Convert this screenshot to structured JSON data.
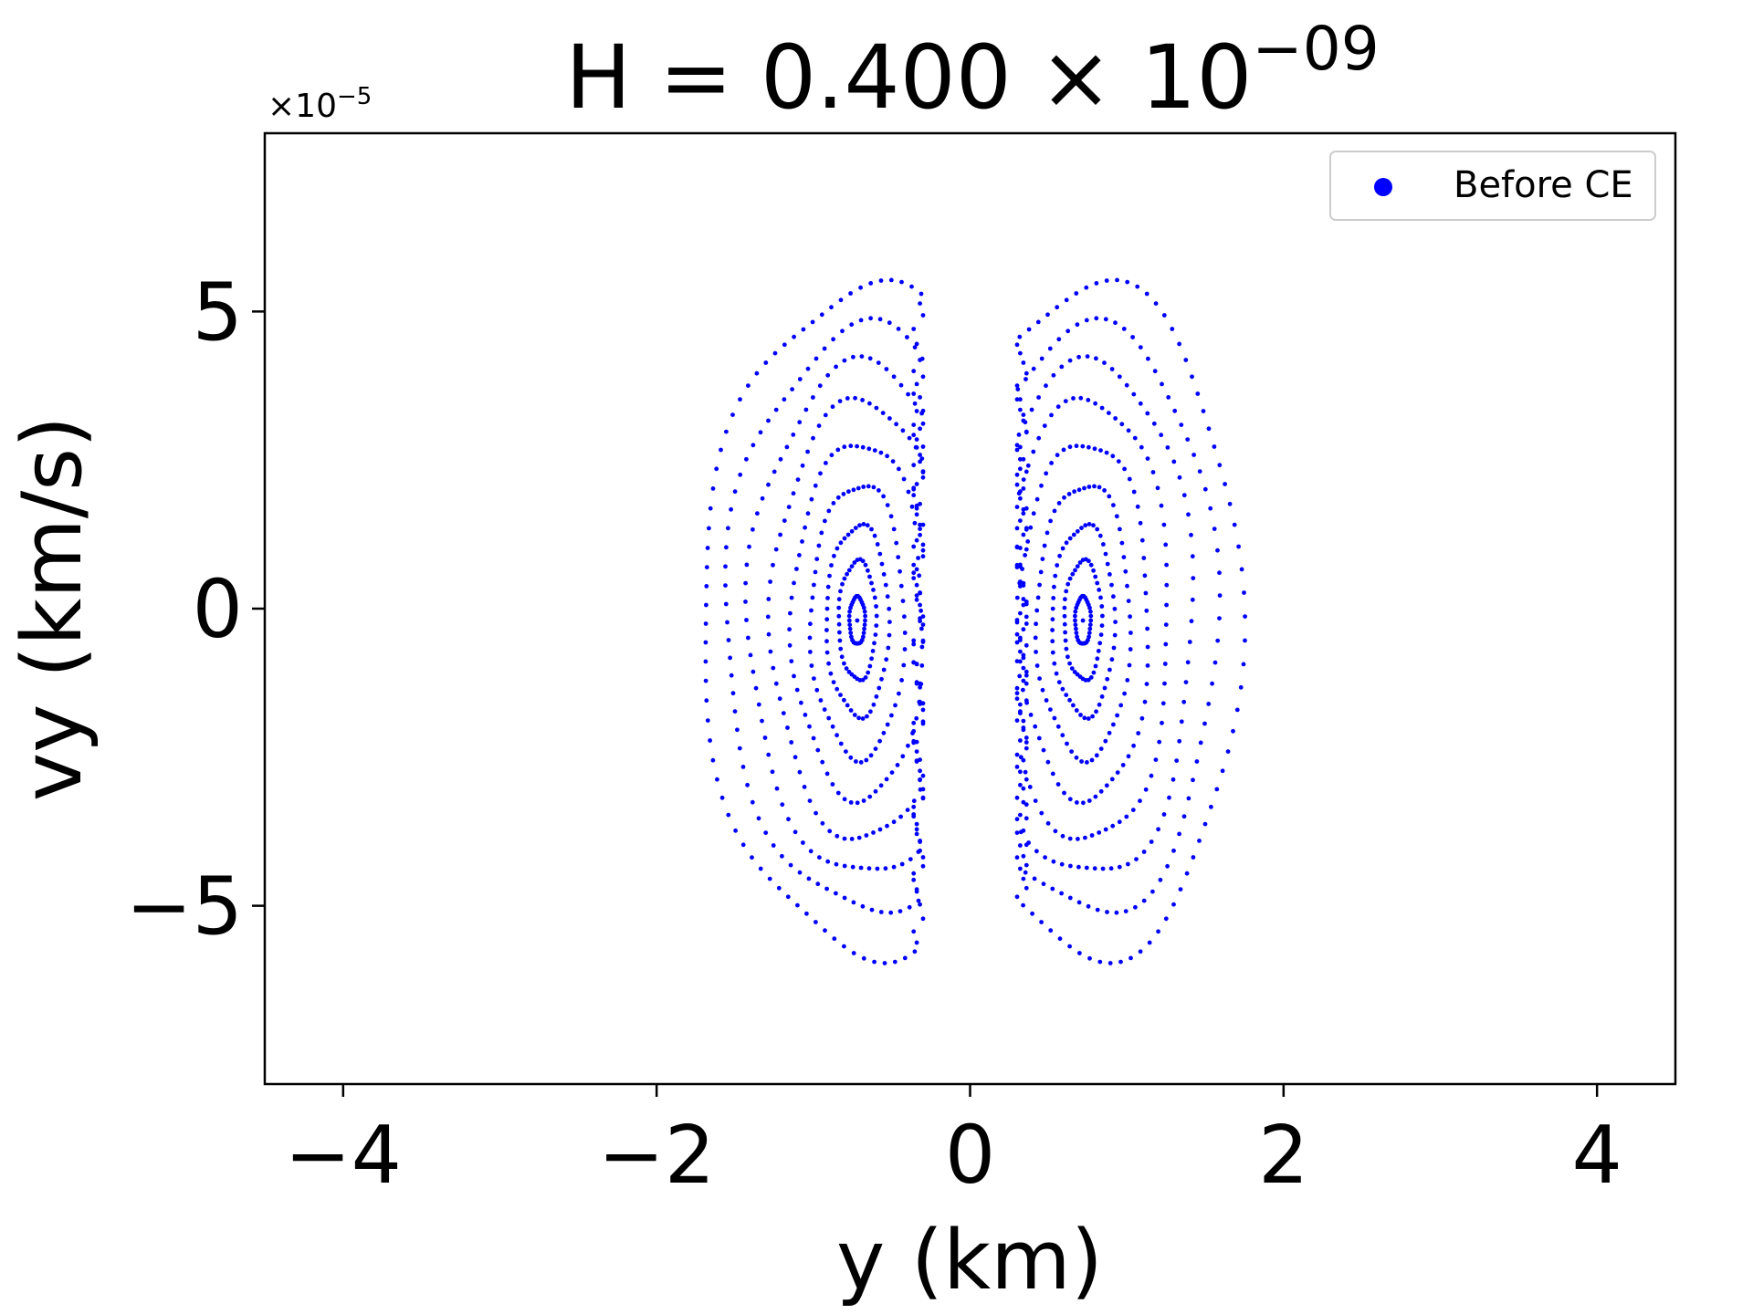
{
  "chart_data": {
    "type": "scatter",
    "title": {
      "base": "H = 0.400 × 10",
      "exponent": "−09"
    },
    "xlabel": "y (km)",
    "ylabel": "vy (km/s)",
    "y_offset_label": {
      "base": "×10",
      "exponent": "−5"
    },
    "xlim": [
      -4.5,
      4.5
    ],
    "ylim": [
      -8,
      8
    ],
    "x_ticks": [
      {
        "value": -4,
        "label": "−4"
      },
      {
        "value": -2,
        "label": "−2"
      },
      {
        "value": 0,
        "label": "0"
      },
      {
        "value": 2,
        "label": "2"
      },
      {
        "value": 4,
        "label": "4"
      }
    ],
    "y_ticks": [
      {
        "value": -5,
        "label": "−5"
      },
      {
        "value": 0,
        "label": "0"
      },
      {
        "value": 5,
        "label": "5"
      }
    ],
    "grid": false,
    "legend": {
      "position": "top-right",
      "entries": [
        "Before CE"
      ]
    },
    "series": [
      {
        "name": "Before CE",
        "color": "#0000ff",
        "marker": "dot",
        "structure": "nested closed orbits around two fixed points, truncated near y = ±0.3 km",
        "fixed_points": [
          [
            -0.72,
            -0.2
          ],
          [
            0.72,
            -0.2
          ]
        ],
        "left_lobe": {
          "center_x": -0.72,
          "center_y": -0.2,
          "inner_edge_x": -0.3,
          "outer_x_extent": [
            0.05,
            0.12,
            0.2,
            0.3,
            0.42,
            0.55,
            0.7,
            0.85,
            1.0
          ],
          "vy_extent": [
            0.4,
            1.0,
            1.6,
            2.3,
            3.0,
            3.7,
            4.3,
            4.9,
            5.6
          ]
        },
        "right_lobe": {
          "center_x": 0.72,
          "center_y": -0.2,
          "inner_edge_x": 0.3,
          "outer_x_extent": [
            0.05,
            0.12,
            0.2,
            0.3,
            0.42,
            0.55,
            0.7,
            0.85,
            1.0
          ],
          "vy_extent": [
            0.4,
            1.0,
            1.6,
            2.3,
            3.0,
            3.7,
            4.3,
            4.9,
            5.6
          ]
        }
      }
    ]
  }
}
